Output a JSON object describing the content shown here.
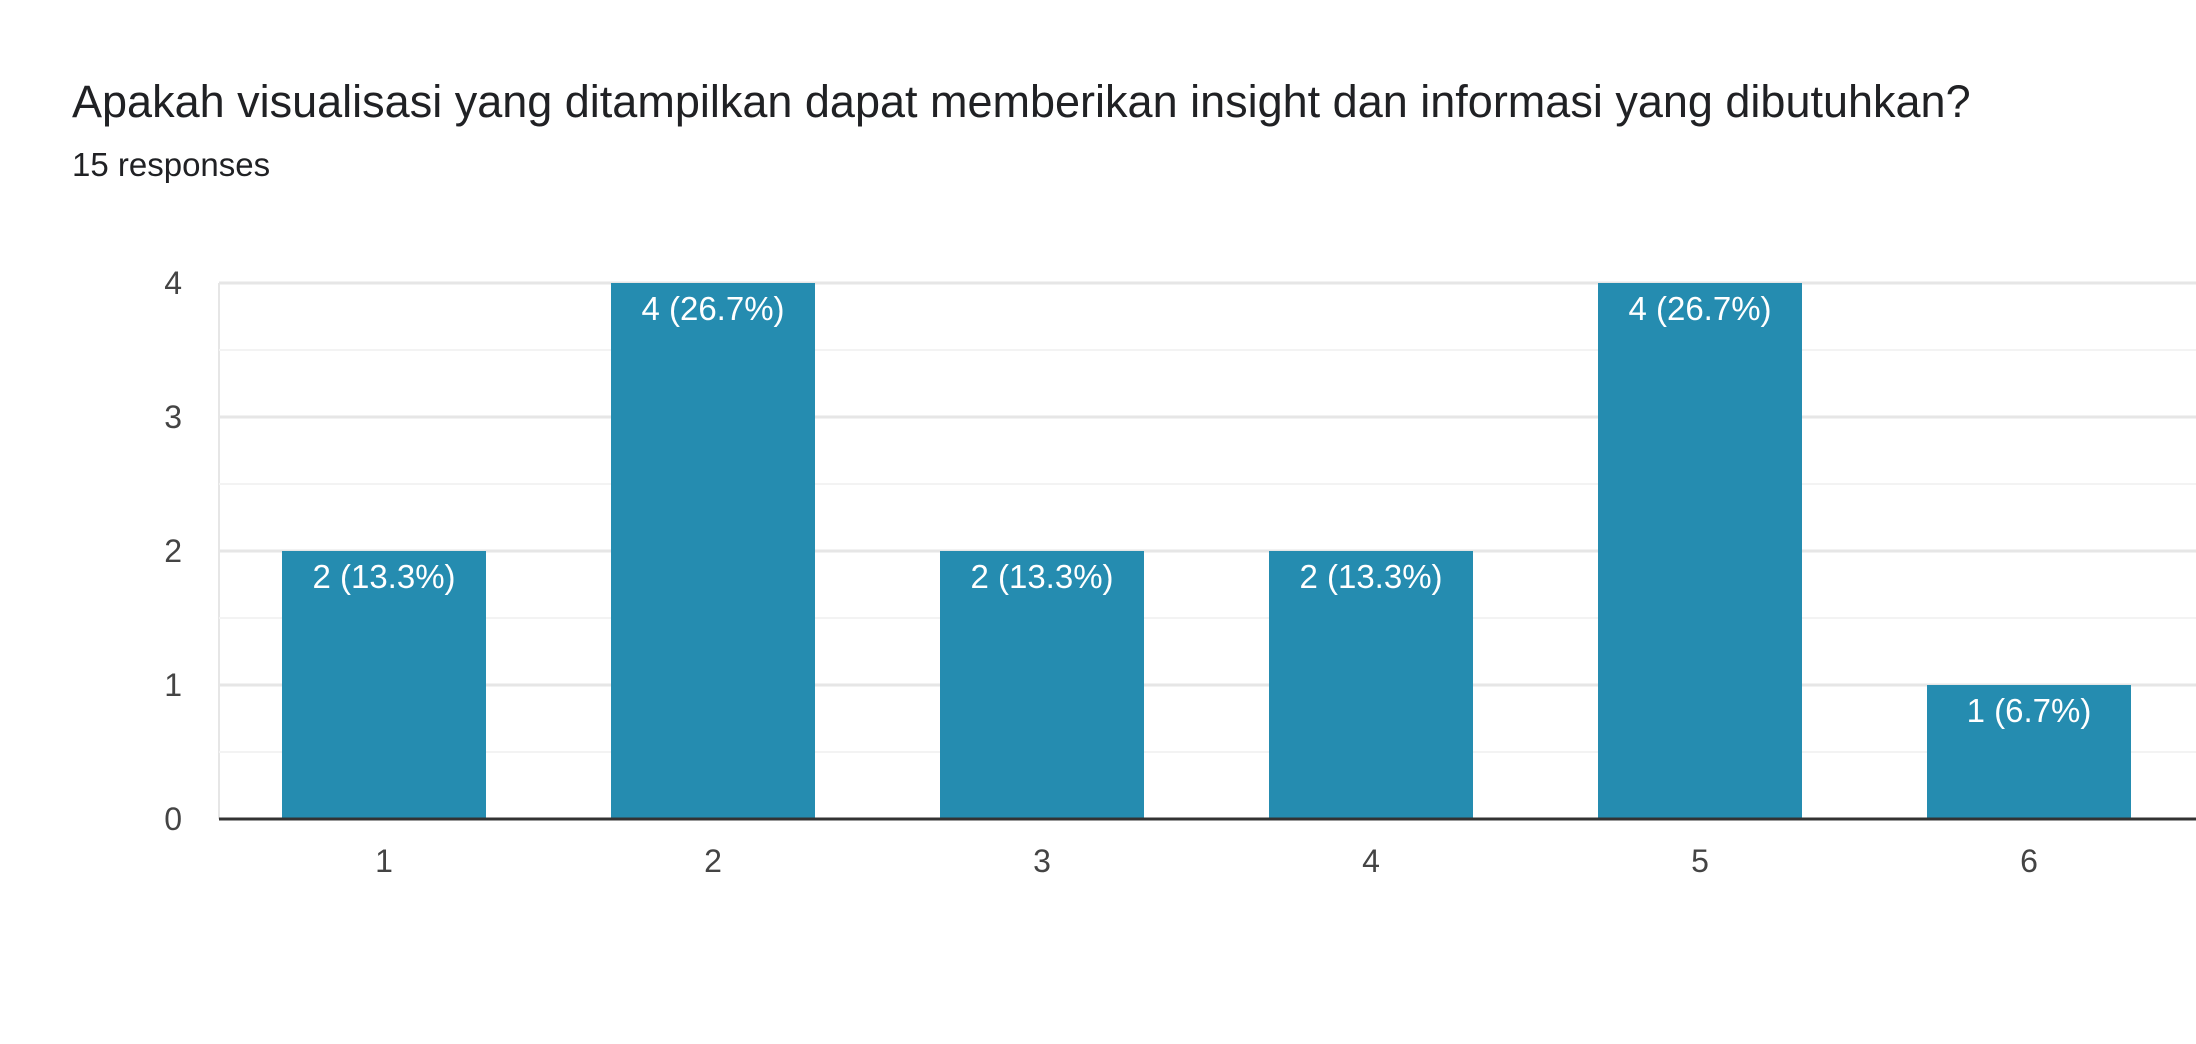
{
  "question": {
    "title": "Apakah visualisasi yang ditampilkan dapat memberikan insight dan informasi yang dibutuhkan?",
    "responses": "15 responses"
  },
  "colors": {
    "bar": "#258cb0",
    "gridline_major": "#e6e6e6",
    "gridline_minor": "#f3f3f3",
    "baseline": "#333333"
  },
  "chart_data": {
    "type": "bar",
    "title": "Apakah visualisasi yang ditampilkan dapat memberikan insight dan informasi yang dibutuhkan?",
    "categories": [
      "1",
      "2",
      "3",
      "4",
      "5",
      "6"
    ],
    "values": [
      2,
      4,
      2,
      2,
      4,
      1
    ],
    "data_labels": [
      "2 (13.3%)",
      "4 (26.7%)",
      "2 (13.3%)",
      "2 (13.3%)",
      "4 (26.7%)",
      "1 (6.7%)"
    ],
    "y_ticks": [
      0,
      1,
      2,
      3,
      4
    ],
    "ylim": [
      0,
      4
    ],
    "xlabel": "",
    "ylabel": "",
    "grid": true,
    "legend": "none"
  }
}
